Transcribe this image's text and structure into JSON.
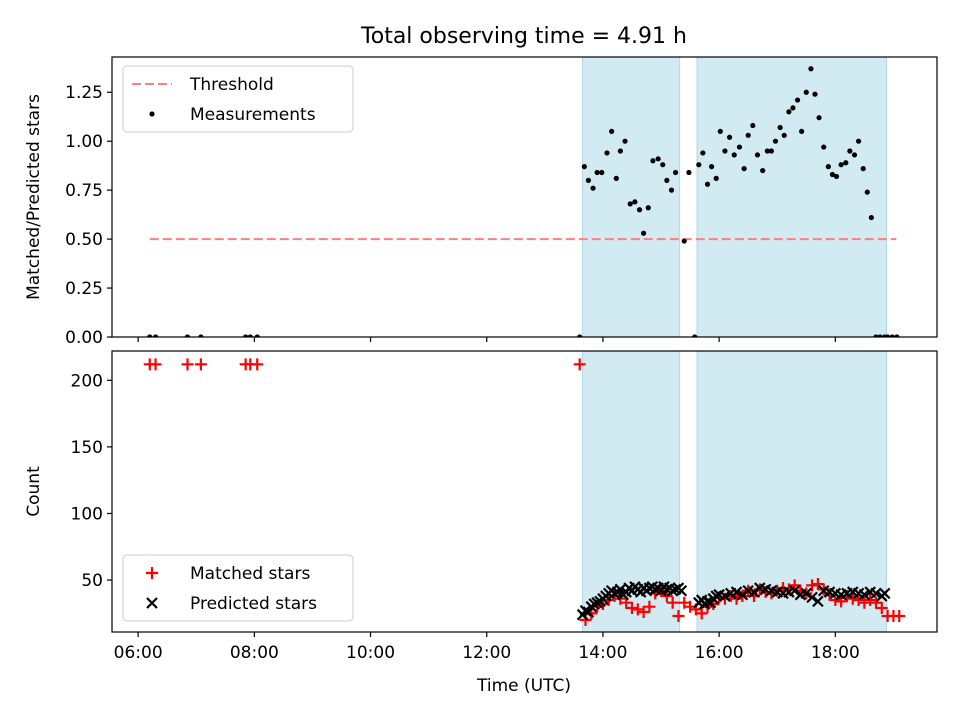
{
  "figure": {
    "title": "Total observing time = 4.91 h",
    "xlabel": "Time (UTC)"
  },
  "chart_data": [
    {
      "type": "scatter",
      "panel": "top",
      "ylabel": "Matched/Predicted stars",
      "xlim": [
        5.55,
        19.75
      ],
      "ylim": [
        0,
        1.43
      ],
      "yticks": [
        0.0,
        0.25,
        0.5,
        0.75,
        1.0,
        1.25
      ],
      "ytick_labels": [
        "0.00",
        "0.25",
        "0.50",
        "0.75",
        "1.00",
        "1.25"
      ],
      "grid": false,
      "legend": "top-left",
      "shaded_intervals": [
        [
          13.65,
          15.32
        ],
        [
          15.62,
          18.88
        ]
      ],
      "shade_color": "#add8e6",
      "threshold": {
        "name": "Threshold",
        "y": 0.5,
        "x_range": [
          6.2,
          19.05
        ],
        "color": "#ff7f7f",
        "style": "dashed"
      },
      "series": [
        {
          "name": "Measurements",
          "color": "#000000",
          "marker": "dot",
          "x": [
            6.2,
            6.3,
            6.85,
            7.08,
            7.85,
            7.93,
            8.05,
            13.6,
            13.68,
            13.75,
            13.83,
            13.9,
            13.98,
            14.07,
            14.15,
            14.23,
            14.3,
            14.38,
            14.47,
            14.55,
            14.63,
            14.7,
            14.78,
            14.86,
            14.95,
            15.03,
            15.1,
            15.18,
            15.25,
            15.4,
            15.48,
            15.58,
            15.65,
            15.72,
            15.8,
            15.87,
            15.95,
            16.02,
            16.1,
            16.18,
            16.26,
            16.35,
            16.43,
            16.5,
            16.58,
            16.66,
            16.75,
            16.83,
            16.9,
            16.97,
            17.05,
            17.12,
            17.2,
            17.27,
            17.35,
            17.42,
            17.5,
            17.58,
            17.65,
            17.72,
            17.8,
            17.88,
            17.95,
            18.02,
            18.1,
            18.18,
            18.25,
            18.33,
            18.4,
            18.48,
            18.55,
            18.62,
            18.7,
            18.77,
            18.85,
            18.9,
            18.98,
            19.06
          ],
          "y": [
            0.0,
            0.0,
            0.0,
            0.0,
            0.0,
            0.0,
            0.0,
            0.0,
            0.87,
            0.8,
            0.76,
            0.84,
            0.84,
            0.94,
            1.05,
            0.81,
            0.95,
            1.0,
            0.68,
            0.69,
            0.65,
            0.53,
            0.66,
            0.9,
            0.91,
            0.88,
            0.8,
            0.75,
            0.84,
            0.49,
            0.84,
            0.0,
            0.88,
            0.94,
            0.78,
            0.87,
            0.81,
            1.05,
            0.95,
            1.02,
            0.93,
            0.97,
            0.86,
            1.03,
            1.08,
            0.93,
            0.85,
            0.95,
            0.95,
            1.0,
            1.07,
            1.03,
            1.15,
            1.17,
            1.21,
            1.05,
            1.25,
            1.37,
            1.24,
            1.12,
            0.97,
            0.87,
            0.83,
            0.82,
            0.88,
            0.89,
            0.95,
            0.93,
            1.0,
            0.86,
            0.74,
            0.61,
            0.0,
            0.0,
            0.0,
            0.0,
            0.0,
            0.0
          ]
        }
      ]
    },
    {
      "type": "scatter",
      "panel": "bottom",
      "ylabel": "Count",
      "xlim": [
        5.55,
        19.75
      ],
      "ylim": [
        11,
        222
      ],
      "yticks": [
        50,
        100,
        150,
        200
      ],
      "ytick_labels": [
        "50",
        "100",
        "150",
        "200"
      ],
      "xticks": [
        6,
        8,
        10,
        12,
        14,
        16,
        18
      ],
      "xtick_labels": [
        "06:00",
        "08:00",
        "10:00",
        "12:00",
        "14:00",
        "16:00",
        "18:00"
      ],
      "grid": false,
      "legend": "bottom-left",
      "shaded_intervals": [
        [
          13.65,
          15.32
        ],
        [
          15.62,
          18.88
        ]
      ],
      "shade_color": "#add8e6",
      "series": [
        {
          "name": "Matched stars",
          "color": "#ff0000",
          "marker": "plus",
          "x": [
            6.2,
            6.3,
            6.85,
            7.08,
            7.85,
            7.93,
            8.05,
            13.6,
            13.7,
            13.8,
            13.9,
            14.0,
            14.1,
            14.2,
            14.3,
            14.4,
            14.5,
            14.6,
            14.7,
            14.8,
            14.9,
            15.0,
            15.1,
            15.2,
            15.3,
            15.4,
            15.5,
            15.6,
            15.7,
            15.8,
            15.9,
            16.0,
            16.1,
            16.2,
            16.3,
            16.4,
            16.5,
            16.6,
            16.7,
            16.8,
            16.9,
            17.0,
            17.1,
            17.2,
            17.3,
            17.4,
            17.5,
            17.6,
            17.7,
            17.8,
            17.9,
            18.0,
            18.1,
            18.2,
            18.3,
            18.4,
            18.5,
            18.6,
            18.7,
            18.8,
            18.9,
            19.0,
            19.1
          ],
          "y": [
            212,
            212,
            212,
            212,
            212,
            212,
            212,
            212,
            20,
            25,
            30,
            32,
            35,
            38,
            36,
            33,
            29,
            28,
            26,
            30,
            40,
            42,
            38,
            33,
            23,
            33,
            30,
            28,
            25,
            30,
            32,
            37,
            36,
            38,
            36,
            38,
            42,
            38,
            43,
            41,
            40,
            42,
            44,
            43,
            46,
            42,
            40,
            46,
            47,
            43,
            39,
            35,
            34,
            38,
            36,
            35,
            33,
            35,
            33,
            29,
            23,
            23,
            23
          ]
        },
        {
          "name": "Predicted stars",
          "color": "#000000",
          "marker": "x",
          "x": [
            13.65,
            13.7,
            13.75,
            13.8,
            13.85,
            13.9,
            13.95,
            14.0,
            14.05,
            14.1,
            14.15,
            14.2,
            14.25,
            14.3,
            14.35,
            14.4,
            14.45,
            14.5,
            14.55,
            14.6,
            14.65,
            14.7,
            14.75,
            14.8,
            14.85,
            14.9,
            14.95,
            15.0,
            15.05,
            15.1,
            15.15,
            15.2,
            15.25,
            15.3,
            15.35,
            15.65,
            15.7,
            15.75,
            15.8,
            15.85,
            15.9,
            15.95,
            16.0,
            16.1,
            16.2,
            16.3,
            16.4,
            16.5,
            16.6,
            16.7,
            16.8,
            16.9,
            17.0,
            17.1,
            17.2,
            17.3,
            17.4,
            17.5,
            17.6,
            17.7,
            17.8,
            17.9,
            18.0,
            18.1,
            18.2,
            18.3,
            18.4,
            18.5,
            18.6,
            18.7,
            18.8,
            18.85
          ],
          "y": [
            24,
            27,
            26,
            30,
            32,
            33,
            34,
            36,
            38,
            40,
            42,
            40,
            41,
            43,
            39,
            41,
            44,
            42,
            45,
            43,
            41,
            44,
            42,
            44,
            45,
            43,
            44,
            42,
            45,
            43,
            44,
            42,
            43,
            44,
            42,
            33,
            35,
            32,
            34,
            33,
            36,
            38,
            39,
            38,
            40,
            41,
            39,
            42,
            41,
            44,
            43,
            42,
            41,
            40,
            41,
            42,
            39,
            40,
            37,
            34,
            42,
            41,
            40,
            39,
            40,
            41,
            40,
            39,
            41,
            40,
            38,
            40
          ]
        }
      ]
    }
  ]
}
